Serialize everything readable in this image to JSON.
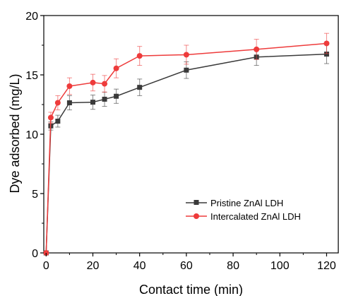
{
  "chart_data": {
    "type": "line",
    "xlabel": "Contact time (min)",
    "ylabel": "Dye adsorbed (mg/L)",
    "xlim": [
      -1,
      125
    ],
    "ylim": [
      0,
      20
    ],
    "xticks": [
      0,
      20,
      40,
      60,
      80,
      100,
      120
    ],
    "yticks": [
      0,
      5,
      10,
      15,
      20
    ],
    "x_tick_labels": [
      "0",
      "20",
      "40",
      "60",
      "80",
      "100",
      "120"
    ],
    "y_tick_labels": [
      "0",
      "5",
      "10",
      "15",
      "20"
    ],
    "grid": false,
    "legend_position": "bottom-right",
    "series": [
      {
        "name": "Pristine ZnAl LDH",
        "color": "#3a3a3a",
        "marker": "square",
        "x": [
          0,
          2,
          5,
          10,
          20,
          25,
          30,
          40,
          60,
          90,
          120
        ],
        "y": [
          0,
          10.7,
          11.1,
          12.65,
          12.7,
          12.95,
          13.2,
          13.95,
          15.4,
          16.5,
          16.75
        ],
        "error": [
          0,
          0.35,
          0.5,
          0.6,
          0.6,
          0.6,
          0.6,
          0.7,
          0.7,
          0.7,
          0.8
        ]
      },
      {
        "name": "Intercalated ZnAl LDH",
        "color": "#ee3b3b",
        "marker": "circle",
        "x": [
          0,
          2,
          5,
          10,
          20,
          25,
          30,
          40,
          60,
          90,
          120
        ],
        "y": [
          0,
          11.4,
          12.65,
          14.05,
          14.35,
          14.25,
          15.55,
          16.6,
          16.7,
          17.15,
          17.65
        ],
        "error": [
          0,
          0.45,
          0.6,
          0.7,
          0.7,
          0.7,
          0.8,
          0.8,
          0.8,
          0.85,
          0.85
        ]
      }
    ]
  }
}
